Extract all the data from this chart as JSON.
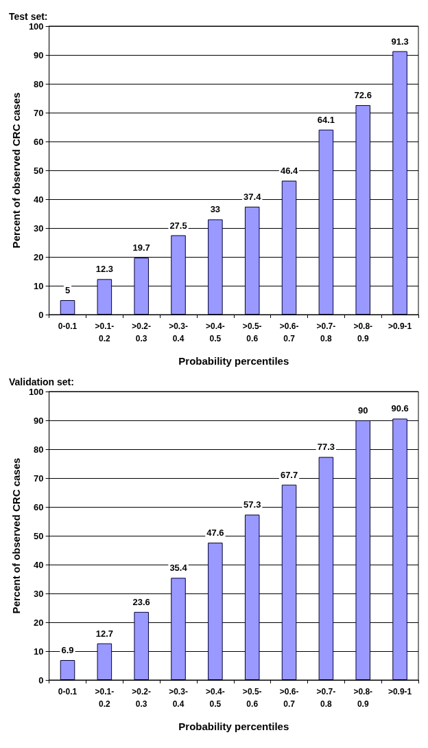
{
  "chart_data": [
    {
      "type": "bar",
      "title": "Test set:",
      "xlabel": "Probability percentiles",
      "ylabel": "Percent of observed CRC cases",
      "categories": [
        "0-0.1",
        ">0.1-0.2",
        ">0.2-0.3",
        ">0.3-0.4",
        ">0.4-0.5",
        ">0.5-0.6",
        ">0.6-0.7",
        ">0.7-0.8",
        ">0.8-0.9",
        ">0.9-1"
      ],
      "values": [
        5,
        12.3,
        19.7,
        27.5,
        33,
        37.4,
        46.4,
        64.1,
        72.6,
        91.3
      ],
      "color": "#9999ff",
      "ylim": [
        0,
        100
      ],
      "yticks": [
        0,
        10,
        20,
        30,
        40,
        50,
        60,
        70,
        80,
        90,
        100
      ],
      "grid": "y",
      "data_labels": true
    },
    {
      "type": "bar",
      "title": "Validation set:",
      "xlabel": "Probability percentiles",
      "ylabel": "Percent of observed CRC cases",
      "categories": [
        "0-0.1",
        ">0.1-0.2",
        ">0.2-0.3",
        ">0.3-0.4",
        ">0.4-0.5",
        ">0.5-0.6",
        ">0.6-0.7",
        ">0.7-0.8",
        ">0.8-0.9",
        ">0.9-1"
      ],
      "values": [
        6.9,
        12.7,
        23.6,
        35.4,
        47.6,
        57.3,
        67.7,
        77.3,
        90,
        90.6
      ],
      "color": "#9999ff",
      "ylim": [
        0,
        100
      ],
      "yticks": [
        0,
        10,
        20,
        30,
        40,
        50,
        60,
        70,
        80,
        90,
        100
      ],
      "grid": "y",
      "data_labels": true
    }
  ]
}
